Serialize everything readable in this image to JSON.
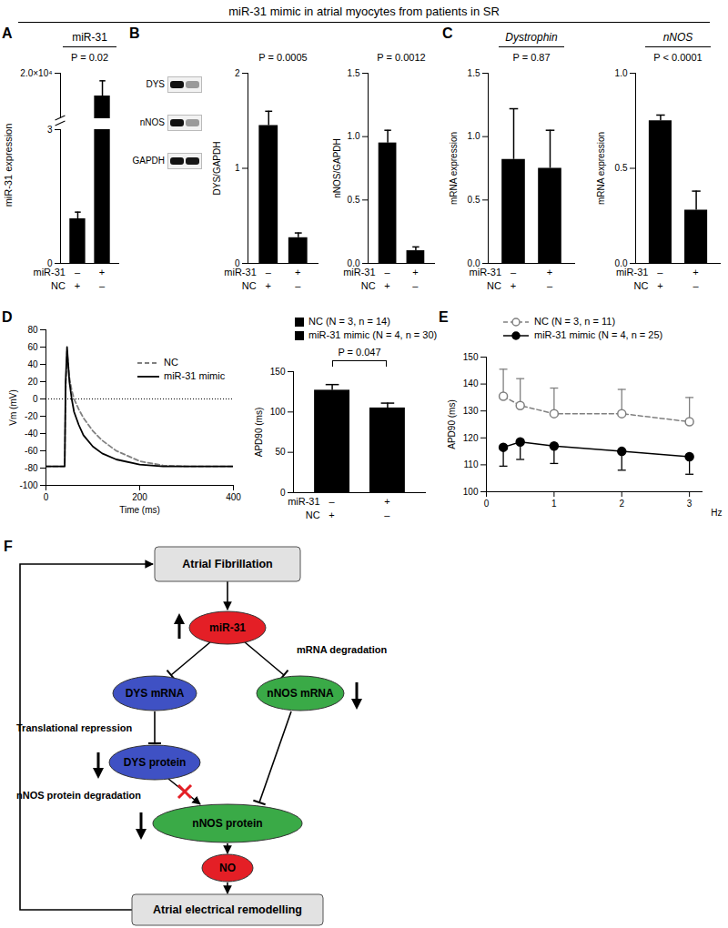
{
  "title": "miR-31 mimic in atrial myocytes from patients in SR",
  "chart_data": [
    {
      "panel": "A",
      "header": "miR-31",
      "type": "bar",
      "ylabel": "miR-31 expression",
      "conditions": [
        {
          "name": "miR-31",
          "marks": [
            "–",
            "+"
          ]
        },
        {
          "name": "NC",
          "marks": [
            "+",
            "–"
          ]
        }
      ],
      "values": [
        1.0,
        17000
      ],
      "errors": [
        0.15,
        2000
      ],
      "color": "#000000",
      "ylim": [
        0,
        20000
      ],
      "axis_break": [
        3,
        14000
      ],
      "yticks": [
        0,
        3,
        {
          "value": 20000,
          "label": "2.0×10⁴"
        }
      ],
      "annotation": "P = 0.02"
    },
    {
      "type": "bar",
      "ylabel": "DYS/GAPDH",
      "conditions": [
        {
          "name": "miR-31",
          "marks": [
            "–",
            "+"
          ]
        },
        {
          "name": "NC",
          "marks": [
            "+",
            "–"
          ]
        }
      ],
      "values": [
        1.45,
        0.27
      ],
      "errors": [
        0.15,
        0.05
      ],
      "color": "#000000",
      "ylim": [
        0,
        2
      ],
      "yticks": [
        0,
        1,
        2
      ],
      "annotation": "P = 0.0005"
    },
    {
      "type": "bar",
      "ylabel": "nNOS/GAPDH",
      "conditions": [
        {
          "name": "miR-31",
          "marks": [
            "–",
            "+"
          ]
        },
        {
          "name": "NC",
          "marks": [
            "+",
            "–"
          ]
        }
      ],
      "values": [
        0.95,
        0.1
      ],
      "errors": [
        0.1,
        0.03
      ],
      "color": "#000000",
      "ylim": [
        0,
        1.5
      ],
      "yticks": [
        {
          "value": 0,
          "label": "0.0"
        },
        {
          "value": 0.5,
          "label": "0.5"
        },
        {
          "value": 1,
          "label": "1.0"
        },
        {
          "value": 1.5,
          "label": "1.5"
        }
      ],
      "annotation": "P = 0.0012"
    },
    {
      "panel": "C",
      "header": "Dystrophin",
      "type": "bar",
      "ylabel": "mRNA expression",
      "conditions": [
        {
          "name": "miR-31",
          "marks": [
            "–",
            "+"
          ]
        },
        {
          "name": "NC",
          "marks": [
            "+",
            "–"
          ]
        }
      ],
      "values": [
        0.82,
        0.75
      ],
      "errors": [
        0.4,
        0.3
      ],
      "color": "#000000",
      "ylim": [
        0,
        1.5
      ],
      "yticks": [
        {
          "value": 0,
          "label": "0.0"
        },
        {
          "value": 0.5,
          "label": "0.5"
        },
        {
          "value": 1,
          "label": "1.0"
        },
        {
          "value": 1.5,
          "label": "1.5"
        }
      ],
      "annotation": "P = 0.87"
    },
    {
      "header": "nNOS",
      "type": "bar",
      "ylabel": "mRNA expression",
      "conditions": [
        {
          "name": "miR-31",
          "marks": [
            "–",
            "+"
          ]
        },
        {
          "name": "NC",
          "marks": [
            "+",
            "–"
          ]
        }
      ],
      "values": [
        0.75,
        0.28
      ],
      "errors": [
        0.03,
        0.1
      ],
      "color": "#000000",
      "ylim": [
        0,
        1
      ],
      "yticks": [
        {
          "value": 0,
          "label": "0.0"
        },
        {
          "value": 0.5,
          "label": "0.5"
        },
        {
          "value": 1,
          "label": "1.0"
        }
      ],
      "annotation": "P < 0.0001"
    },
    {
      "panel": "D",
      "type": "line",
      "xlabel": "Time (ms)",
      "ylabel": "Vm (mV)",
      "x": [
        0,
        40,
        42,
        45,
        50,
        55,
        60,
        70,
        80,
        100,
        120,
        150,
        200,
        250,
        300,
        350,
        400
      ],
      "series": [
        {
          "name": "NC",
          "color": "#808080",
          "line_style": "dashed",
          "values": [
            -78,
            -78,
            10,
            55,
            25,
            10,
            0,
            -12,
            -22,
            -37,
            -48,
            -60,
            -72,
            -77,
            -78,
            -78,
            -78
          ]
        },
        {
          "name": "miR-31 mimic",
          "color": "#000000",
          "line_style": "solid",
          "values": [
            -78,
            -78,
            20,
            60,
            20,
            0,
            -15,
            -30,
            -42,
            -55,
            -63,
            -70,
            -76,
            -78,
            -78,
            -78,
            -78
          ]
        }
      ],
      "reference_line": 0,
      "xlim": [
        0,
        400
      ],
      "xticks": [
        0,
        200,
        400
      ],
      "ylim": [
        -100,
        80
      ],
      "yticks": [
        -100,
        -80,
        -60,
        -40,
        -20,
        0,
        20,
        40,
        60,
        80
      ],
      "legend": "upper right"
    },
    {
      "type": "bar",
      "ylabel": "APD90 (ms)",
      "conditions": [
        {
          "name": "miR-31",
          "marks": [
            "–",
            "+"
          ]
        },
        {
          "name": "NC",
          "marks": [
            "+",
            "–"
          ]
        }
      ],
      "values": [
        127,
        105
      ],
      "errors": [
        7,
        6
      ],
      "colors": [
        "#000000",
        "#000000"
      ],
      "legend_entries": [
        "NC (N = 3, n = 14)",
        "miR-31 mimic (N = 4, n = 30)"
      ],
      "legend": "top",
      "ylim": [
        0,
        150
      ],
      "yticks": [
        0,
        50,
        100,
        150
      ],
      "annotation": "P = 0.047"
    },
    {
      "panel": "E",
      "type": "line",
      "xlabel": "Hz",
      "ylabel": "APD90 (ms)",
      "x": [
        0.25,
        0.5,
        1,
        2,
        3
      ],
      "series": [
        {
          "name": "NC (N = 3, n = 11)",
          "color": "#808080",
          "marker": "open circle",
          "line_style": "dashed",
          "values": [
            135.5,
            132,
            129,
            129,
            126
          ],
          "errors_high": [
            10,
            10,
            9.5,
            9,
            9
          ],
          "errors_low": [
            0,
            0,
            0,
            0,
            0
          ]
        },
        {
          "name": "miR-31 mimic (N = 4, n = 25)",
          "color": "#000000",
          "marker": "circle",
          "line_style": "solid",
          "values": [
            116.5,
            118.5,
            117,
            115,
            113
          ],
          "errors_high": [
            0,
            0,
            0,
            0,
            0
          ],
          "errors_low": [
            7,
            6.5,
            6.5,
            7,
            6.5
          ]
        }
      ],
      "xlim": [
        0,
        3.2
      ],
      "xticks": [
        0,
        1,
        2,
        3
      ],
      "ylim": [
        100,
        150
      ],
      "yticks": [
        100,
        110,
        120,
        130,
        140,
        150
      ],
      "legend": "top"
    }
  ],
  "blot": {
    "panel": "B",
    "bands": [
      "DYS",
      "nNOS",
      "GAPDH"
    ]
  },
  "diagram": {
    "panel": "F",
    "nodes": [
      {
        "label": "Atrial Fibrillation",
        "color": "#e2e2e2"
      },
      {
        "label": "miR-31",
        "color": "#e41f26"
      },
      {
        "label": "DYS mRNA",
        "color": "#3f51c4"
      },
      {
        "label": "nNOS mRNA",
        "color": "#3aaa47"
      },
      {
        "label": "DYS protein",
        "color": "#3f51c4"
      },
      {
        "label": "nNOS protein",
        "color": "#3aaa47"
      },
      {
        "label": "NO",
        "color": "#e41f26"
      },
      {
        "label": "Atrial electrical remodelling",
        "color": "#e2e2e2"
      }
    ],
    "annotations": [
      "Translational repression",
      "mRNA degradation",
      "nNOS protein degradation"
    ]
  }
}
